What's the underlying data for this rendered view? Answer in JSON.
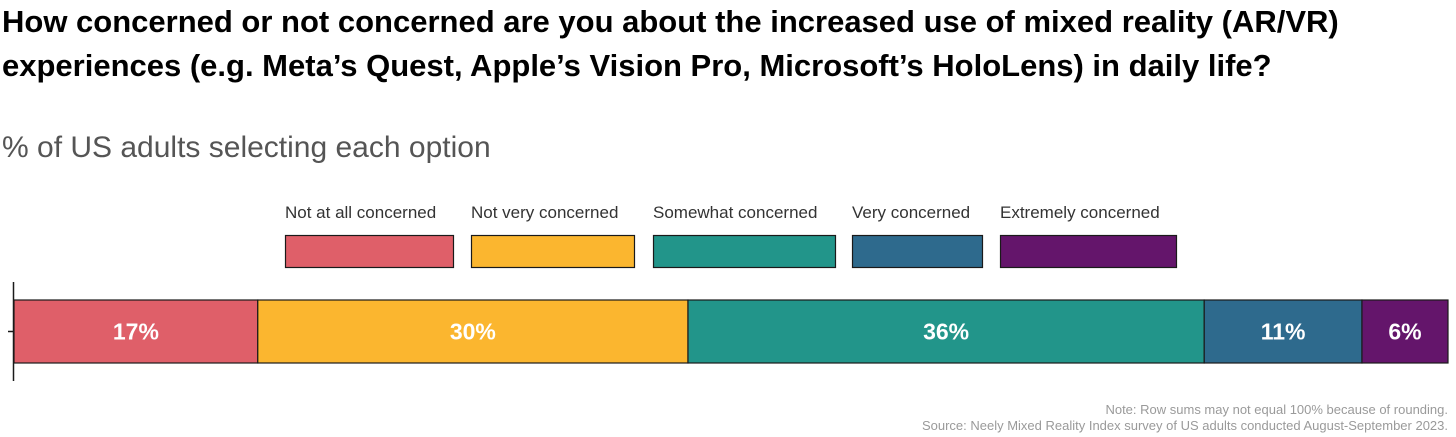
{
  "chart_data": {
    "type": "bar",
    "orientation": "horizontal-stacked",
    "title": "How concerned or not concerned are you about the increased use of mixed reality (AR/VR) experiences (e.g. Meta’s Quest, Apple’s Vision Pro, Microsoft’s HoloLens) in daily life?",
    "subtitle": "% of US adults selecting each option",
    "xlim": [
      0,
      100
    ],
    "legend_position": "top",
    "series": [
      {
        "name": "Not at all concerned",
        "values": [
          17
        ],
        "label": "17%",
        "color": "#DF5F69"
      },
      {
        "name": "Not very concerned",
        "values": [
          30
        ],
        "label": "30%",
        "color": "#FBB62F"
      },
      {
        "name": "Somewhat concerned",
        "values": [
          36
        ],
        "label": "36%",
        "color": "#22958A"
      },
      {
        "name": "Very concerned",
        "values": [
          11
        ],
        "label": "11%",
        "color": "#2E6A8D"
      },
      {
        "name": "Extremely concerned",
        "values": [
          6
        ],
        "label": "6%",
        "color": "#64156B"
      }
    ]
  },
  "footer": {
    "note": "Note: Row sums may not equal 100% because of rounding.",
    "source": "Source: Neely Mixed Reality Index survey of US adults conducted August-September 2023."
  }
}
